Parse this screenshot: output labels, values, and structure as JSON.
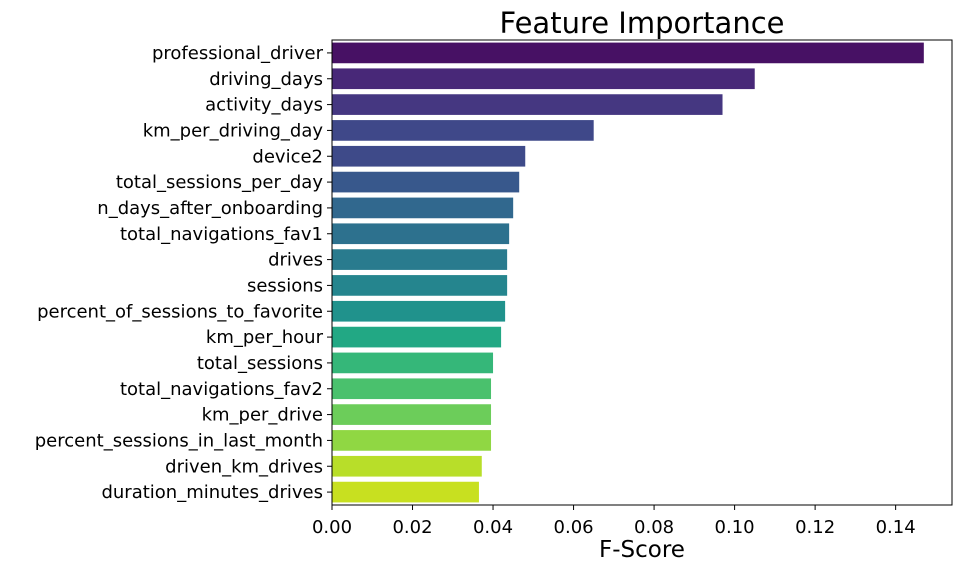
{
  "chart_data": {
    "type": "bar",
    "orientation": "horizontal",
    "title": "Feature Importance",
    "xlabel": "F-Score",
    "ylabel": "",
    "xlim": [
      0,
      0.154
    ],
    "xticks": [
      "0.00",
      "0.02",
      "0.04",
      "0.06",
      "0.08",
      "0.10",
      "0.12",
      "0.14"
    ],
    "grid": false,
    "colormap": "viridis",
    "categories": [
      "professional_driver",
      "driving_days",
      "activity_days",
      "km_per_driving_day",
      "device2",
      "total_sessions_per_day",
      "n_days_after_onboarding",
      "total_navigations_fav1",
      "drives",
      "sessions",
      "percent_of_sessions_to_favorite",
      "km_per_hour",
      "total_sessions",
      "total_navigations_fav2",
      "km_per_drive",
      "percent_sessions_in_last_month",
      "driven_km_drives",
      "duration_minutes_drives"
    ],
    "values": [
      0.147,
      0.105,
      0.097,
      0.065,
      0.048,
      0.0465,
      0.045,
      0.044,
      0.0435,
      0.0435,
      0.043,
      0.042,
      0.04,
      0.0395,
      0.0395,
      0.0395,
      0.0372,
      0.0365
    ],
    "colors": [
      "#471164",
      "#482878",
      "#453781",
      "#3f4889",
      "#3e4a89",
      "#38588c",
      "#31688e",
      "#2d718e",
      "#297b8e",
      "#25858e",
      "#20928c",
      "#22a884",
      "#35b779",
      "#4ac16d",
      "#6ccd5a",
      "#90d743",
      "#b8de29",
      "#c8e020"
    ]
  }
}
